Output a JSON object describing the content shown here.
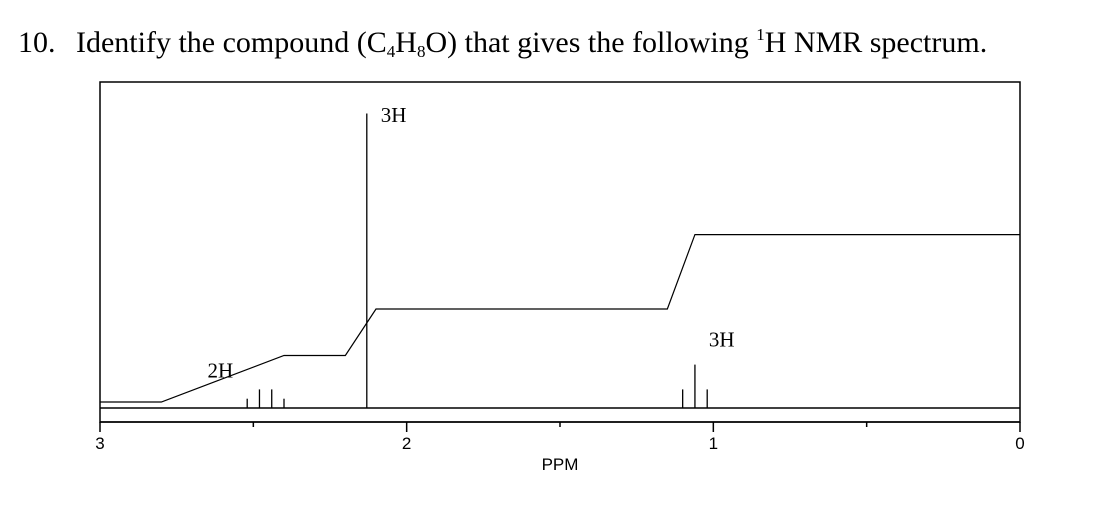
{
  "question": {
    "number": "10.",
    "text_before": "Identify the compound (C",
    "sub1": "4",
    "text_mid1": "H",
    "sub2": "8",
    "text_mid2": "O) that gives the following ",
    "sup": "1",
    "text_after": "H NMR spectrum."
  },
  "chart_data": {
    "type": "line",
    "title": "",
    "xlabel": "PPM",
    "ylabel": "",
    "xlim": [
      3,
      0
    ],
    "x_reversed": true,
    "ticks": {
      "major": [
        3,
        2,
        1,
        0
      ],
      "minor": [
        2.5,
        1.5,
        0.5
      ]
    },
    "tick_labels": [
      "3",
      "2",
      "1",
      "0"
    ],
    "grid": false,
    "peaks": [
      {
        "label": "2H",
        "multiplicity": "quartet",
        "shift": 2.45,
        "lines": [
          2.52,
          2.48,
          2.44,
          2.4
        ],
        "heights": [
          0.03,
          0.06,
          0.06,
          0.03
        ]
      },
      {
        "label": "3H",
        "multiplicity": "singlet",
        "shift": 2.13,
        "lines": [
          2.13
        ],
        "heights": [
          0.95
        ]
      },
      {
        "label": "3H",
        "multiplicity": "triplet",
        "shift": 1.06,
        "lines": [
          1.1,
          1.06,
          1.02
        ],
        "heights": [
          0.06,
          0.14,
          0.06
        ]
      }
    ],
    "integration_steps": [
      {
        "from": 2.8,
        "to": 2.4,
        "rise": 0.15
      },
      {
        "from": 2.2,
        "to": 2.1,
        "rise": 0.15
      },
      {
        "from": 1.15,
        "to": 1.06,
        "rise": 0.24
      }
    ]
  }
}
